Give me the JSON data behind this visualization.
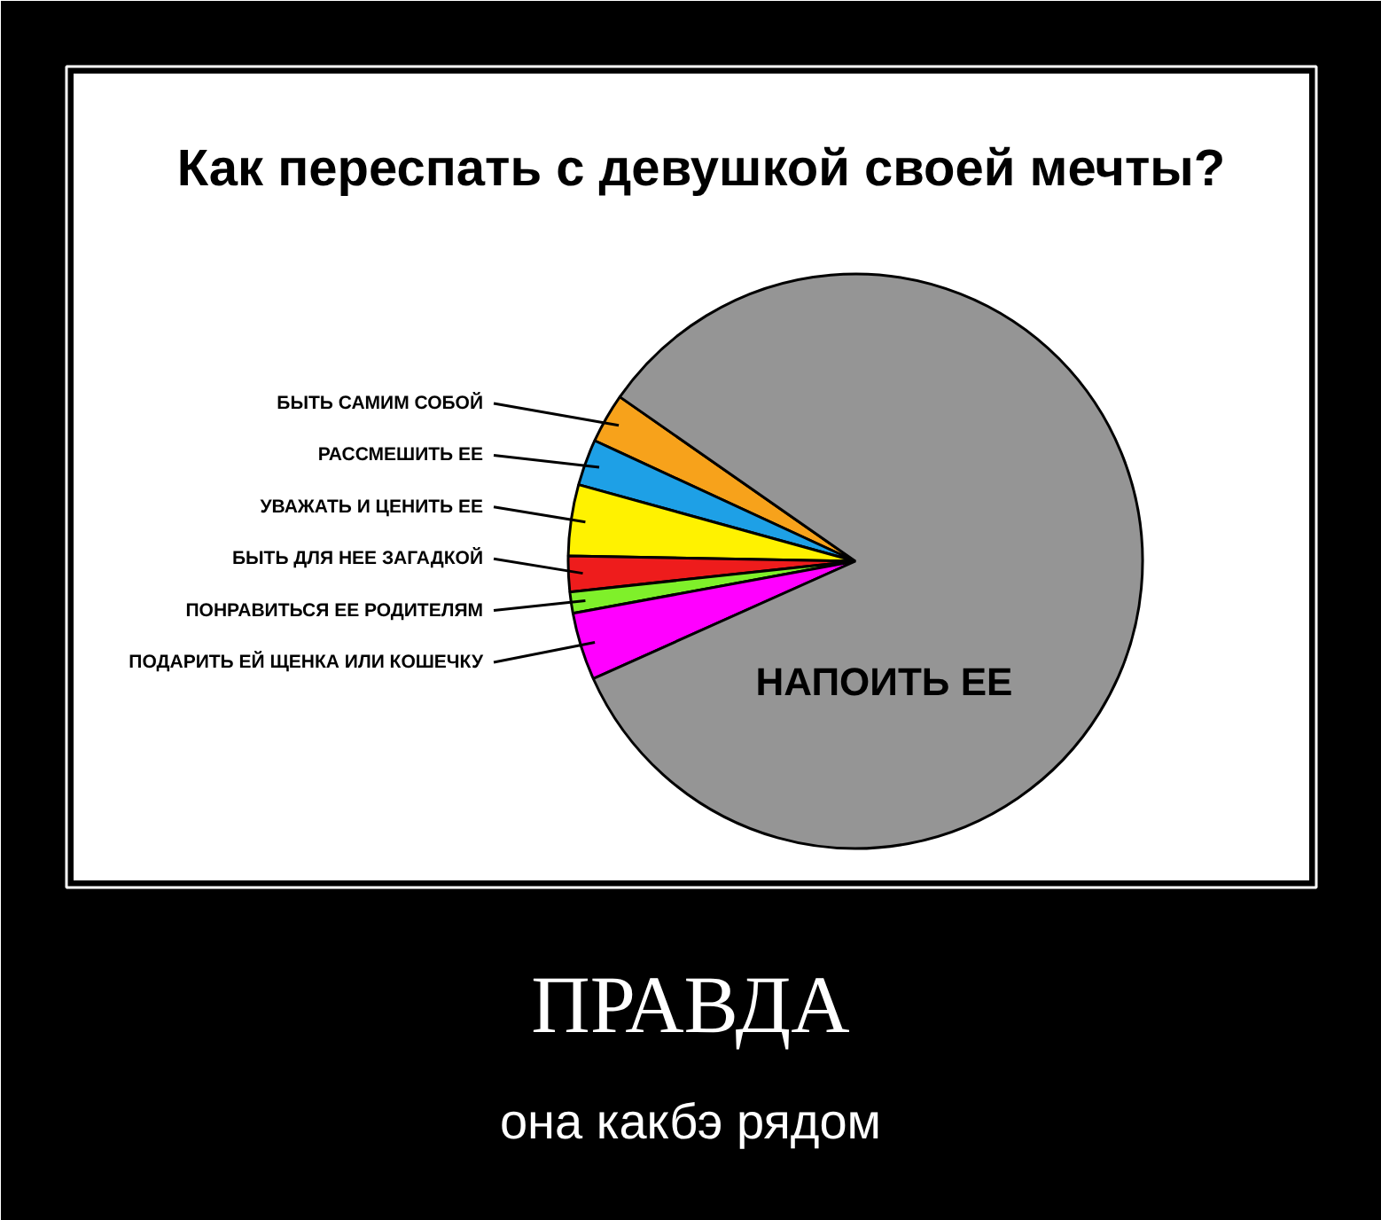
{
  "chart_data": {
    "type": "pie",
    "title": "Как переспать с девушкой своей мечты?",
    "categories": [
      "БЫТЬ САМИМ СОБОЙ",
      "РАССМЕШИТЬ ЕЕ",
      "УВАЖАТЬ И ЦЕНИТЬ ЕЕ",
      "БЫТЬ ДЛЯ НЕЕ ЗАГАДКОЙ",
      "ПОНРАВИТЬСЯ ЕЕ РОДИТЕЛЯМ",
      "ПОДАРИТЬ ЕЙ ЩЕНКА ИЛИ КОШЕЧКУ",
      "НАПОИТЬ ЕЕ"
    ],
    "values": [
      2.8,
      2.6,
      4.0,
      2.0,
      1.2,
      3.8,
      83.6
    ],
    "colors": [
      "#f7a21b",
      "#1ea0e6",
      "#fff200",
      "#ee1c1c",
      "#7ff02a",
      "#ff00ff",
      "#959595"
    ],
    "annotations": [
      "ПРАВДА",
      "она какбэ рядом"
    ]
  }
}
